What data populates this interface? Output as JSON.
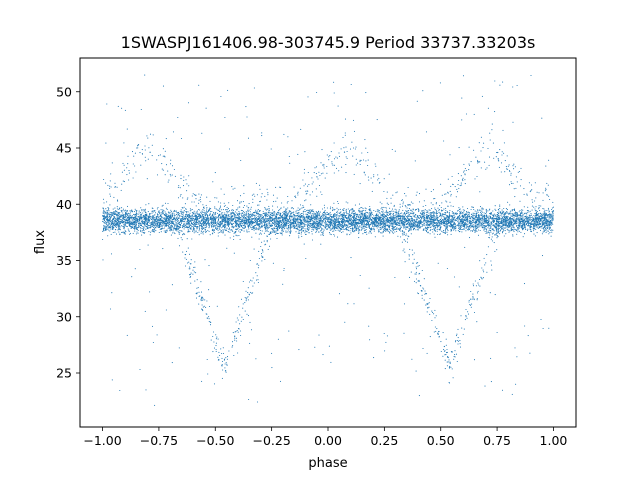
{
  "chart_data": {
    "type": "scatter",
    "title": "1SWASPJ161406.98-303745.9 Period 33737.33203s",
    "xlabel": "phase",
    "ylabel": "flux",
    "xlim": [
      -1.1,
      1.1
    ],
    "ylim": [
      20.2,
      53.0
    ],
    "xticks": [
      -1.0,
      -0.75,
      -0.5,
      -0.25,
      0.0,
      0.25,
      0.5,
      0.75,
      1.0
    ],
    "xtick_labels": [
      "−1.00",
      "−0.75",
      "−0.50",
      "−0.25",
      "0.00",
      "0.25",
      "0.50",
      "0.75",
      "1.00"
    ],
    "yticks": [
      25,
      30,
      35,
      40,
      45,
      50
    ],
    "ytick_labels": [
      "25",
      "30",
      "35",
      "40",
      "45",
      "50"
    ],
    "grid": false,
    "legend": "none",
    "marker_color": "#1f77b4",
    "series": [
      {
        "description_only": false,
        "phase_range": [
          -1.0,
          1.0
        ],
        "baseline_flux": 38.5,
        "baseline_spread": 1.3,
        "eclipse_centers": [
          -0.46,
          0.54
        ],
        "eclipse_min_flux": 25.5,
        "eclipse_half_width": 0.22,
        "upper_branch_peak_flux": 45.0,
        "upper_branch_centers": [
          -0.8,
          0.08,
          0.72
        ],
        "outlier_range": [
          22.0,
          51.5
        ],
        "approx_point_count": 9000
      }
    ]
  }
}
